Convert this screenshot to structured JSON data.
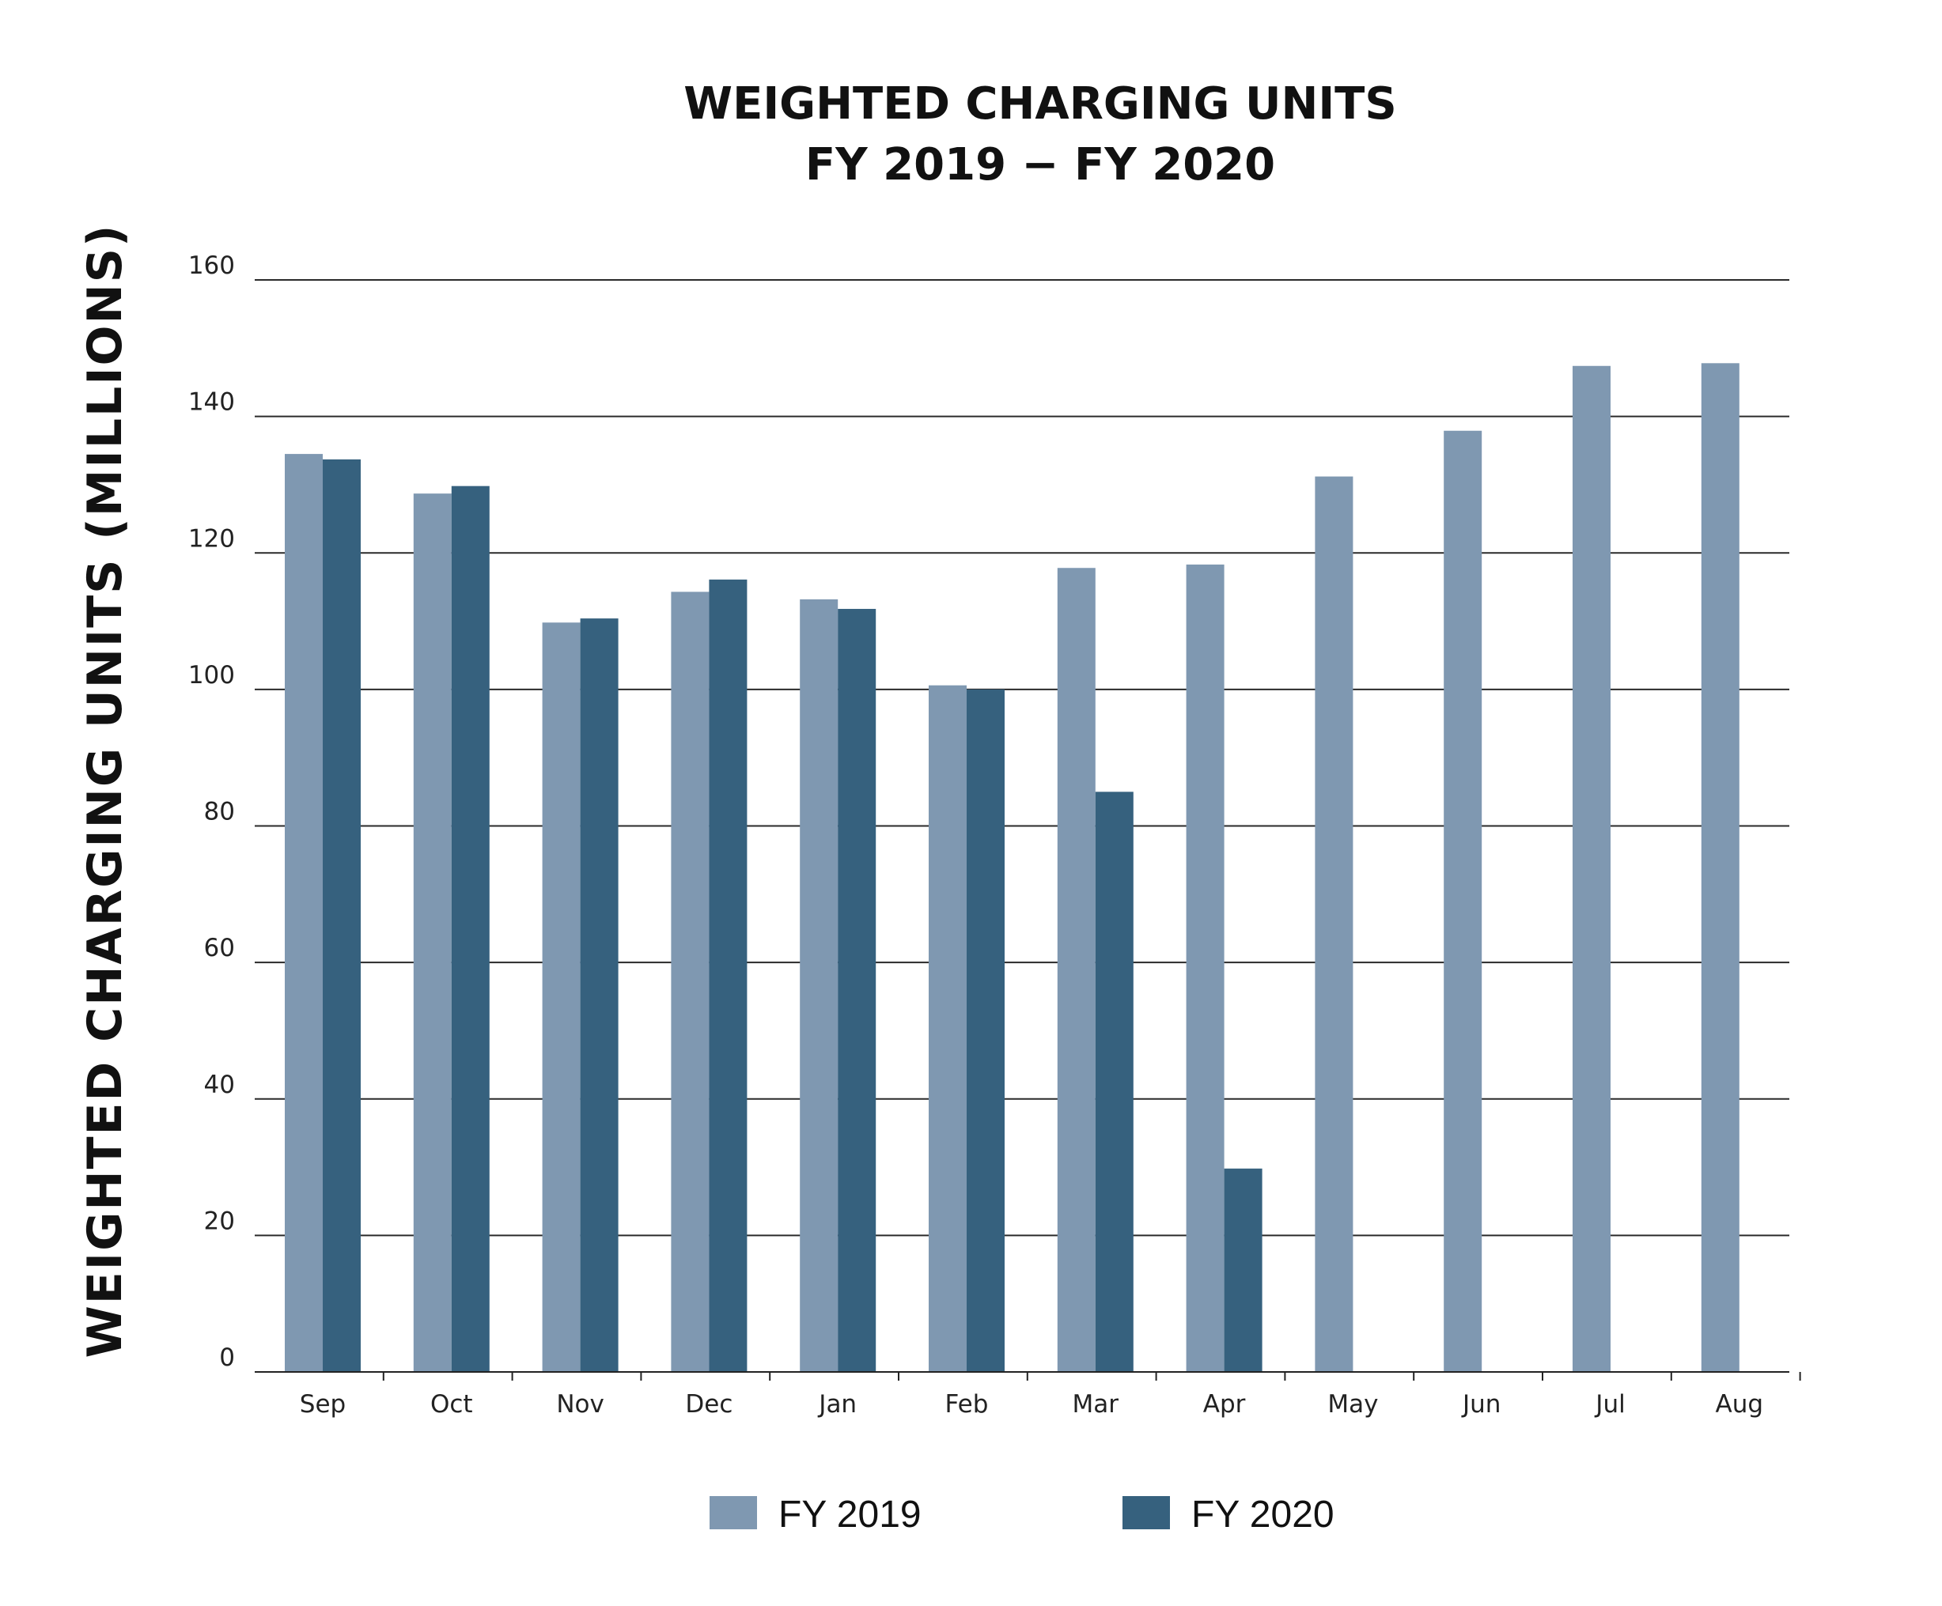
{
  "chart_data": {
    "type": "bar",
    "title": "WEIGHTED CHARGING UNITS",
    "subtitle": "FY 2019 − FY 2020",
    "xlabel": "",
    "ylabel": "WEIGHTED CHARGING UNITS (MILLIONS)",
    "ylim": [
      0,
      160
    ],
    "yticks": [
      0,
      20,
      40,
      60,
      80,
      100,
      120,
      140,
      160
    ],
    "grid": true,
    "legend_position": "bottom",
    "categories": [
      "Sep",
      "Oct",
      "Nov",
      "Dec",
      "Jan",
      "Feb",
      "Mar",
      "Apr",
      "May",
      "Jun",
      "Jul",
      "Aug"
    ],
    "series": [
      {
        "name": "FY 2019",
        "color": "#7f98b1",
        "values": [
          134.5,
          128.7,
          109.8,
          114.3,
          113.2,
          100.6,
          117.8,
          118.3,
          131.2,
          137.9,
          147.4,
          147.8
        ]
      },
      {
        "name": "FY 2020",
        "color": "#36617e",
        "values": [
          133.7,
          129.8,
          110.4,
          116.1,
          111.8,
          100.0,
          85.0,
          29.8,
          null,
          null,
          null,
          null
        ]
      }
    ]
  }
}
